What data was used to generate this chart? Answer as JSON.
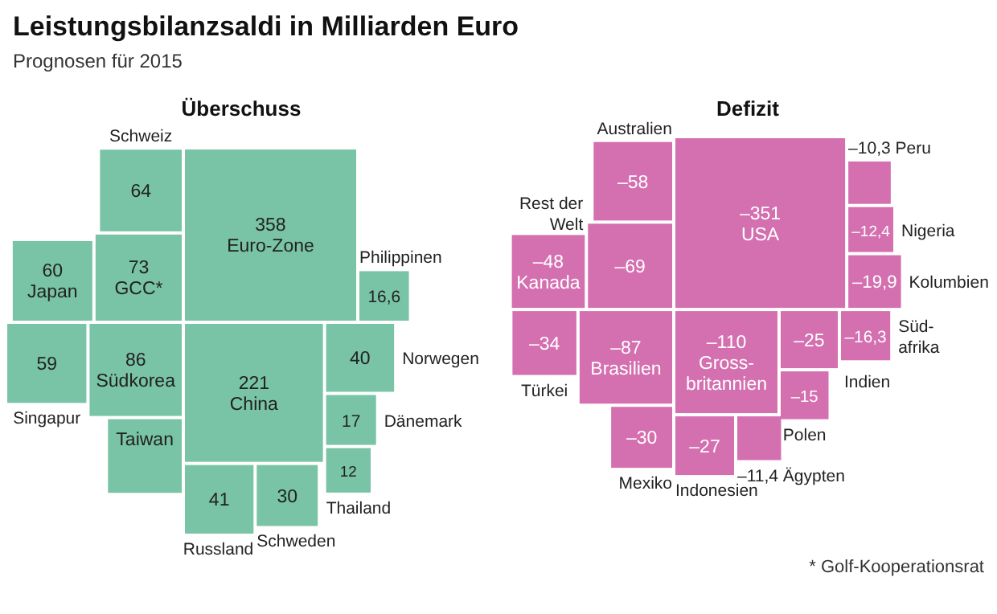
{
  "chart_data": [
    {
      "type": "other",
      "title": "Leistungsbilanzsaldi in Milliarden Euro",
      "subtitle": "Prognosen für 2015"
    },
    {
      "type": "other",
      "title": "Überschuss",
      "color": "#79c3a7",
      "categories": [
        "Euro-Zone",
        "China",
        "GCC*",
        "Schweiz",
        "Japan",
        "Südkorea",
        "Singapur",
        "Taiwan",
        "Russland",
        "Schweden",
        "Philippinen",
        "Norwegen",
        "Dänemark",
        "Thailand"
      ],
      "values": [
        358,
        221,
        73,
        64,
        60,
        86,
        59,
        null,
        41,
        30,
        16.6,
        40,
        17,
        12
      ],
      "value_labels": [
        "358",
        "221",
        "73",
        "64",
        "60",
        "86",
        "59",
        null,
        "41",
        "30",
        "16,6",
        "40",
        "17",
        "12"
      ]
    },
    {
      "type": "other",
      "title": "Defizit",
      "color": "#d46fb0",
      "categories": [
        "USA",
        "Gross-\nbritannien",
        "Rest der\nWelt",
        "Australien",
        "Kanada",
        "Brasilien",
        "Türkei",
        "Mexiko",
        "Indonesien",
        "Ägypten",
        "Indien",
        "Polen",
        "Süd-\nafrika",
        "Kolumbien",
        "Nigeria",
        "Peru"
      ],
      "values": [
        -351,
        -110,
        -69,
        -58,
        -48,
        -87,
        -34,
        -30,
        -27,
        -11.4,
        -25,
        -15,
        -16.3,
        -19.9,
        -12.4,
        -10.3
      ],
      "value_labels": [
        "–351",
        "–110",
        "–69",
        "–58",
        "–48",
        "–87",
        "–34",
        "–30",
        "–27",
        "–11,4",
        "–25",
        "–15",
        "–16,3",
        "–19,9",
        "–12,4",
        "–10,3"
      ],
      "annotations": [
        "* Golf-Kooperationsrat"
      ]
    }
  ]
}
